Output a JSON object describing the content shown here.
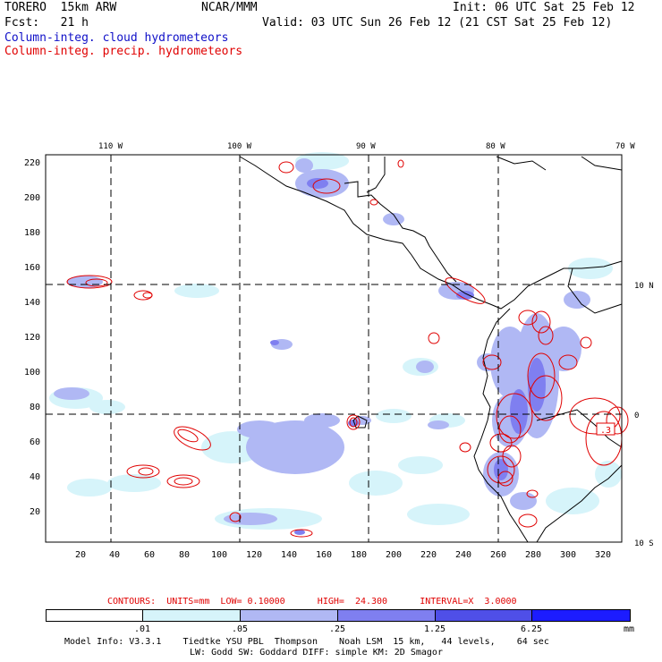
{
  "header": {
    "model": "TORERO  15km ARW",
    "center": "NCAR/MMM",
    "init": "Init: 06 UTC Sat 25 Feb 12",
    "fcst": "Fcst:   21 h",
    "valid": "Valid: 03 UTC Sun 26 Feb 12 (21 CST Sat 25 Feb 12)",
    "field_cloud": "Column-integ. cloud hydrometeors",
    "field_precip": "Column-integ. precip. hydrometeors"
  },
  "map": {
    "lon_labels": [
      "110 W",
      "100 W",
      "90 W",
      "80 W",
      "70 W"
    ],
    "lat_labels": [
      "10 N",
      "0",
      "10 S"
    ],
    "y_ticks": [
      "220",
      "200",
      "180",
      "160",
      "140",
      "120",
      "100",
      "80",
      "60",
      "40",
      "20"
    ],
    "x_ticks": [
      "20",
      "40",
      "60",
      "80",
      "100",
      "120",
      "140",
      "160",
      "180",
      "200",
      "220",
      "240",
      "260",
      "280",
      "300",
      "320"
    ],
    "colors": {
      "cloud_contour": "#1010c8",
      "precip_contour": "#e00000",
      "land": "#000000"
    },
    "max_label": ".3"
  },
  "contours_info": {
    "text": "CONTOURS:  UNITS=mm  LOW= 0.10000      HIGH=  24.300      INTERVAL=X  3.0000"
  },
  "colorbar": {
    "levels": [
      ".01",
      ".05",
      ".25",
      "1.25",
      "6.25"
    ],
    "unit": "mm",
    "colors": [
      "#ffffff",
      "#d6f4fa",
      "#b0b8f4",
      "#7f7ff0",
      "#4f4fe8",
      "#1c1cff"
    ]
  },
  "footer": {
    "line1": "Model Info: V3.3.1    Tiedtke YSU PBL  Thompson    Noah LSM  15 km,   44 levels,    64 sec",
    "line2": "LW: Godd SW: Goddard DIFF: simple KM: 2D Smagor"
  }
}
